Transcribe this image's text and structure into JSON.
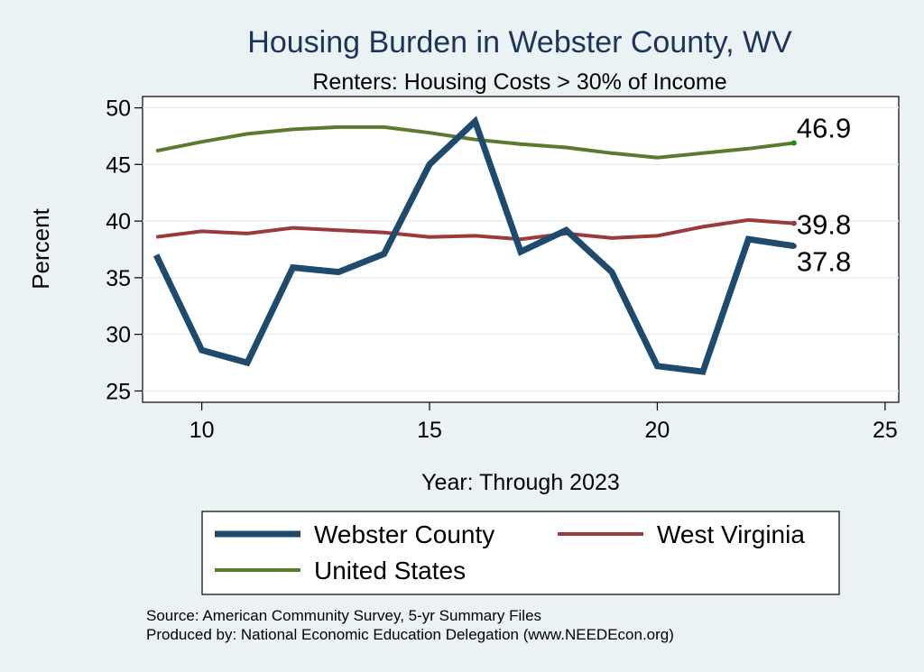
{
  "chart_data": {
    "type": "line",
    "title": "Housing Burden in Webster County, WV",
    "subtitle": "Renters: Housing Costs > 30% of Income",
    "xlabel": "Year: Through 2023",
    "ylabel": "Percent",
    "xlim": [
      8.7,
      25.3
    ],
    "ylim": [
      24,
      51
    ],
    "xticks": [
      10,
      15,
      20,
      25
    ],
    "yticks": [
      25,
      30,
      35,
      40,
      45,
      50
    ],
    "grid": true,
    "legend_position": "bottom",
    "x": [
      9,
      10,
      11,
      12,
      13,
      14,
      15,
      16,
      17,
      18,
      19,
      20,
      21,
      22,
      23
    ],
    "series": [
      {
        "name": "Webster County",
        "color": "#1e4a6e",
        "values": [
          37.0,
          28.6,
          27.5,
          35.9,
          35.5,
          37.1,
          45.0,
          48.8,
          37.3,
          39.2,
          35.5,
          27.2,
          26.7,
          38.4,
          37.8
        ],
        "end_label": "37.8"
      },
      {
        "name": "West Virginia",
        "color": "#9b3a3c",
        "values": [
          38.6,
          39.1,
          38.9,
          39.4,
          39.2,
          39.0,
          38.6,
          38.7,
          38.4,
          38.9,
          38.5,
          38.7,
          39.5,
          40.1,
          39.8
        ],
        "end_label": "39.8"
      },
      {
        "name": "United States",
        "color": "#5c7a2e",
        "values": [
          46.2,
          47.0,
          47.7,
          48.1,
          48.3,
          48.3,
          47.8,
          47.2,
          46.8,
          46.5,
          46.0,
          45.6,
          46.0,
          46.4,
          46.9
        ],
        "end_label": "46.9"
      }
    ]
  },
  "source_note": "Source: American Community Survey, 5-yr Summary Files",
  "produced_note": "Produced by: National Economic Education Delegation (www.NEEDEcon.org)"
}
